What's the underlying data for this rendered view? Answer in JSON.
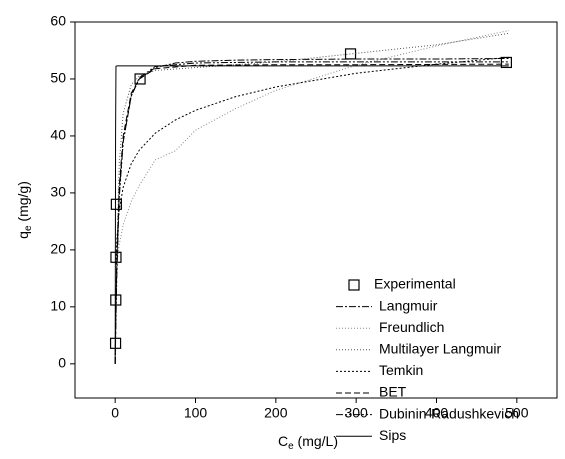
{
  "chart_data": {
    "type": "line",
    "xlabel": {
      "main": "C",
      "sub": "e",
      "unit": " (mg/L)"
    },
    "ylabel": {
      "main": "q",
      "sub": "e",
      "unit": " (mg/g)"
    },
    "xlim": [
      -50,
      550
    ],
    "xticks": [
      0,
      100,
      200,
      300,
      400,
      500
    ],
    "ylim": [
      -6,
      60
    ],
    "yticks": [
      0,
      10,
      20,
      30,
      40,
      50,
      60
    ],
    "legend": "right",
    "series": [
      {
        "name": "Experimental",
        "color": "#000000",
        "marker": "square",
        "x": [
          0.5,
          0.8,
          1,
          1.5,
          31,
          293,
          487
        ],
        "values": [
          3.6,
          11.2,
          18.7,
          28,
          50,
          54.4,
          52.9
        ]
      },
      {
        "name": "Langmuir",
        "color": "#000000",
        "style": "dash-dot",
        "x": [
          0,
          1,
          2,
          5,
          10,
          20,
          30,
          50,
          75,
          100,
          150,
          200,
          300,
          400,
          490
        ],
        "values": [
          0,
          10,
          17,
          30,
          39,
          47,
          50,
          52,
          52.8,
          53.1,
          53.3,
          53.4,
          53.5,
          53.5,
          53.6
        ]
      },
      {
        "name": "Freundlich",
        "color": "#888888",
        "style": "dotted",
        "x": [
          1,
          2,
          5,
          10,
          20,
          30,
          50,
          75,
          100,
          150,
          200,
          300,
          400,
          490
        ],
        "values": [
          14.6,
          17.1,
          20.9,
          24.4,
          28.5,
          31.3,
          35.8,
          37.4,
          41,
          44.8,
          48,
          52.4,
          55.8,
          58.5
        ]
      },
      {
        "name": "Multilayer Langmuir",
        "color": "#555555",
        "style": "dotted",
        "x": [
          0,
          1,
          5,
          10,
          20,
          30,
          50,
          100,
          200,
          300,
          400,
          490
        ],
        "values": [
          0,
          12,
          35,
          44,
          49,
          50.5,
          51.5,
          52,
          53,
          54.5,
          56,
          58
        ]
      },
      {
        "name": "Temkin",
        "color": "#000000",
        "style": "dense-dotted",
        "x": [
          1,
          2,
          5,
          10,
          20,
          30,
          50,
          75,
          100,
          150,
          200,
          300,
          400,
          490
        ],
        "values": [
          17.6,
          21.6,
          27,
          31,
          35.1,
          37.5,
          40.5,
          42.8,
          44.5,
          46.9,
          48.6,
          51,
          52.6,
          53.8
        ]
      },
      {
        "name": "BET",
        "color": "#000000",
        "style": "dashed",
        "x": [
          0,
          1,
          2,
          5,
          10,
          20,
          30,
          50,
          100,
          200,
          300,
          490
        ],
        "values": [
          0,
          11,
          18,
          31,
          40,
          47.5,
          50,
          51.8,
          52.4,
          52.5,
          52.5,
          52.6
        ]
      },
      {
        "name": "Dubinin-Radushkevich",
        "color": "#000000",
        "style": "dash-dot-dot",
        "x": [
          0,
          1,
          2,
          5,
          10,
          20,
          30,
          50,
          100,
          200,
          300,
          490
        ],
        "values": [
          0,
          8,
          15,
          29,
          39,
          47,
          50.2,
          52.2,
          52.8,
          53,
          53,
          53
        ]
      },
      {
        "name": "Sips",
        "color": "#000000",
        "style": "solid",
        "x": [
          0,
          0.5,
          1,
          2,
          10,
          100,
          300,
          490
        ],
        "values": [
          0,
          40,
          52.2,
          52.3,
          52.3,
          52.3,
          52.3,
          52.3
        ]
      }
    ]
  }
}
